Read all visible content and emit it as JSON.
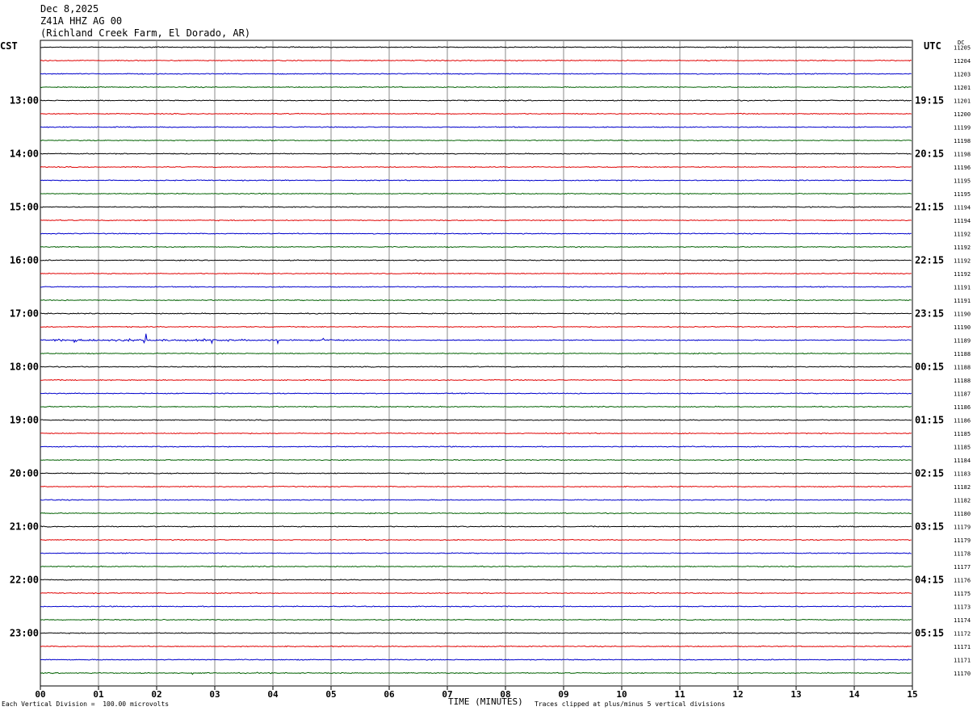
{
  "header": {
    "date": "Dec 8,2025",
    "station": "Z41A HHZ AG 00",
    "location": "(Richland Creek Farm, El Dorado, AR)"
  },
  "left_tz": "CST",
  "right_tz": "UTC",
  "dc_label": "DC",
  "footer": {
    "scale": "Each Vertical Division =  100.00 microvolts",
    "clip": "Traces clipped at plus/minus 5 vertical divisions"
  },
  "chart_data": {
    "type": "line",
    "xlabel": "TIME (MINUTES)",
    "xlim": [
      0,
      15
    ],
    "x_ticks": [
      "00",
      "01",
      "02",
      "03",
      "04",
      "05",
      "06",
      "07",
      "08",
      "09",
      "10",
      "11",
      "12",
      "13",
      "14",
      "15"
    ],
    "rows_per_hour": 4,
    "minutes_per_row": 15,
    "left_hour_labels": [
      "13:00",
      "14:00",
      "15:00",
      "16:00",
      "17:00",
      "18:00",
      "19:00",
      "20:00",
      "21:00",
      "22:00",
      "23:00"
    ],
    "right_hour_labels": [
      "19:15",
      "20:15",
      "21:15",
      "22:15",
      "23:15",
      "00:15",
      "01:15",
      "02:15",
      "03:15",
      "04:15",
      "05:15"
    ],
    "trace_colors": [
      "#000000",
      "#e00000",
      "#0000cc",
      "#006000"
    ],
    "dc_offsets": [
      "11205",
      "11204",
      "11203",
      "11201",
      "11201",
      "11200",
      "11199",
      "11198",
      "11198",
      "11196",
      "11195",
      "11195",
      "11194",
      "11194",
      "11192",
      "11192",
      "11192",
      "11192",
      "11191",
      "11191",
      "11190",
      "11190",
      "11189",
      "11188",
      "11188",
      "11188",
      "11187",
      "11186",
      "11186",
      "11185",
      "11185",
      "11184",
      "11183",
      "11182",
      "11182",
      "11180",
      "11179",
      "11179",
      "11178",
      "11177",
      "11176",
      "11175",
      "11173",
      "11174",
      "11172",
      "11171",
      "11171",
      "11170"
    ],
    "events": [
      {
        "row": 22,
        "x_start": 0.15,
        "x_end": 6.5,
        "peak_minute": 1.8,
        "peak_divisions": 5
      },
      {
        "row": 47,
        "x_start": 2.0,
        "x_end": 8.1,
        "peak_minute": 2.6,
        "peak_divisions": 1.3
      },
      {
        "row": 20,
        "x_start": 14.0,
        "x_end": 15.0,
        "peak_minute": 14.5,
        "peak_divisions": 0.3
      },
      {
        "row": 36,
        "x_start": 6.5,
        "x_end": 7.3,
        "peak_minute": 7.0,
        "peak_divisions": 0.3
      }
    ]
  }
}
